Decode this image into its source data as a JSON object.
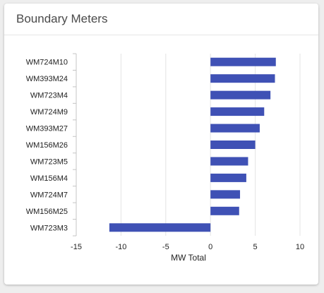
{
  "card": {
    "title": "Boundary Meters"
  },
  "chart_data": {
    "type": "bar",
    "orientation": "horizontal",
    "title": "Boundary Meters",
    "xlabel": "MW Total",
    "ylabel": "",
    "categories": [
      "WM724M10",
      "WM393M24",
      "WM723M4",
      "WM724M9",
      "WM393M27",
      "WM156M26",
      "WM723M5",
      "WM156M4",
      "WM724M7",
      "WM156M25",
      "WM723M3"
    ],
    "values": [
      7.3,
      7.2,
      6.7,
      6.0,
      5.5,
      5.0,
      4.2,
      4.0,
      3.3,
      3.2,
      -11.3
    ],
    "xlim": [
      -15,
      10
    ],
    "xticks": [
      "-15",
      "-10",
      "-5",
      "0",
      "5",
      "10"
    ],
    "bar_color": "#3f51b5",
    "grid": true,
    "legend": "none"
  }
}
